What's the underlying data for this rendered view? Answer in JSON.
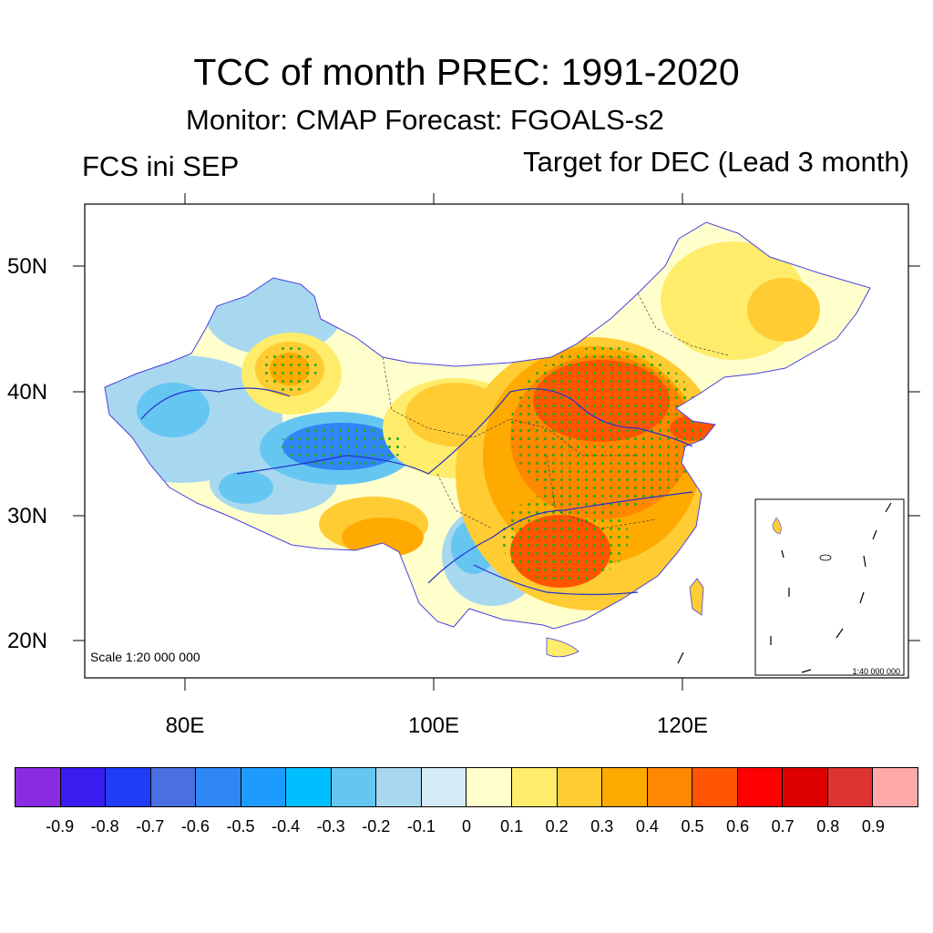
{
  "title": "TCC of month PREC: 1991-2020",
  "subtitle": "Monitor: CMAP   Forecast: FGOALS-s2",
  "left_label": "FCS ini SEP",
  "right_label": "Target for DEC (Lead 3 month)",
  "lat_labels": [
    "50N",
    "40N",
    "30N",
    "20N"
  ],
  "lon_labels": [
    "80E",
    "100E",
    "120E"
  ],
  "scale_label": "Scale 1:20 000 000",
  "inset_scale_label": "1:40 000 000",
  "colorbar": {
    "labels": [
      "-0.9",
      "-0.8",
      "-0.7",
      "-0.6",
      "-0.5",
      "-0.4",
      "-0.3",
      "-0.2",
      "-0.1",
      "0",
      "0.1",
      "0.2",
      "0.3",
      "0.4",
      "0.5",
      "0.6",
      "0.7",
      "0.8",
      "0.9"
    ],
    "colors": [
      "#8a2be2",
      "#3a1cf0",
      "#1f3df5",
      "#4a6fe0",
      "#2f86f5",
      "#1e9bff",
      "#00bfff",
      "#66c6f2",
      "#a8d8f0",
      "#d5ebf7",
      "#ffffcc",
      "#ffec6b",
      "#ffcc33",
      "#ffaa00",
      "#ff8800",
      "#ff5500",
      "#ff0000",
      "#dd0000",
      "#dd3333",
      "#ffaaaa"
    ]
  },
  "legend_colors": {
    "border": "#4a40e0",
    "river": "#2233cc",
    "stipple": "#22aa22"
  }
}
